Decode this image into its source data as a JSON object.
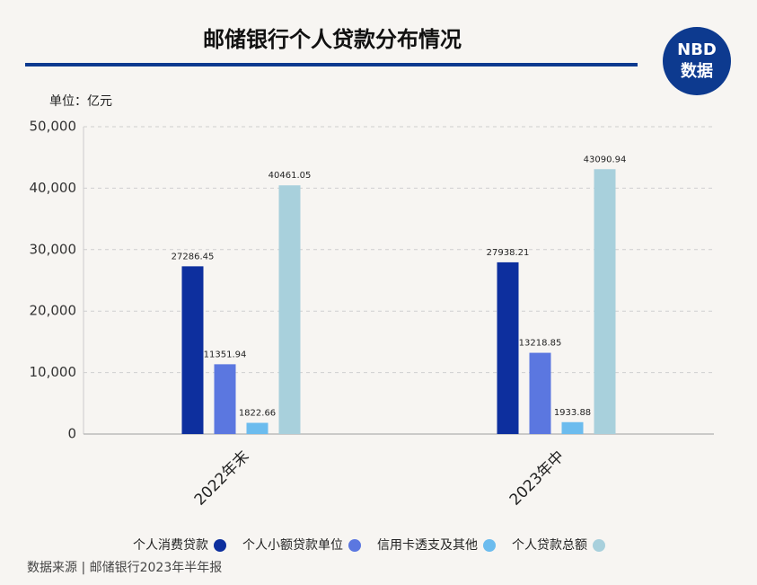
{
  "header": {
    "title": "邮储银行个人贷款分布情况",
    "logo_top": "NBD",
    "logo_bottom": "数据"
  },
  "unit": "单位：亿元",
  "source": "数据来源 | 邮储银行2023年半年报",
  "chart_data": {
    "type": "bar",
    "categories": [
      "2022年末",
      "2023年中"
    ],
    "series": [
      {
        "name": "个人消费贷款",
        "color": "#0d2f9e",
        "values": [
          27286.45,
          27938.21
        ]
      },
      {
        "name": "个人小额贷款单位",
        "color": "#5b77e0",
        "values": [
          11351.94,
          13218.85
        ]
      },
      {
        "name": "信用卡透支及其他",
        "color": "#6cbcee",
        "values": [
          1822.66,
          1933.88
        ]
      },
      {
        "name": "个人贷款总额",
        "color": "#a8d0dc",
        "values": [
          40461.05,
          43090.94
        ]
      }
    ],
    "ylim": [
      0,
      50000
    ],
    "yticks": [
      0,
      {
        "value": 10000,
        "label": "10,000"
      },
      {
        "value": 20000,
        "label": "20,000"
      },
      {
        "value": 30000,
        "label": "30,000"
      },
      {
        "value": 40000,
        "label": "40,000"
      },
      {
        "value": 50000,
        "label": "50,000"
      }
    ],
    "grid": true
  }
}
